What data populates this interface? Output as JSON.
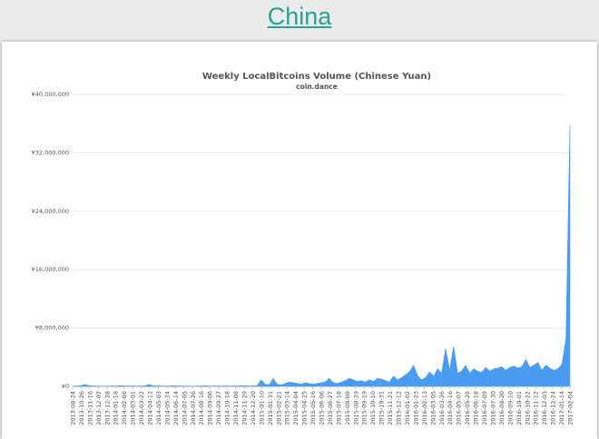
{
  "page": {
    "country": "China"
  },
  "chart_data": {
    "type": "area",
    "title": "Weekly LocalBitcoins Volume (Chinese Yuan)",
    "subtitle": "coin.dance",
    "xlabel": "",
    "ylabel": "",
    "ylim": [
      0,
      40000000
    ],
    "yticks": [
      0,
      8000000,
      16000000,
      24000000,
      32000000,
      40000000
    ],
    "ytick_labels": [
      "¥0",
      "¥8,000,000",
      "¥16,000,000",
      "¥24,000,000",
      "¥32,000,000",
      "¥40,000,000"
    ],
    "grid": true,
    "legend": "none",
    "color": "#4a9cf0",
    "x_tick_labels": [
      "2013-08-24",
      "2013-10-26",
      "2013-11-16",
      "2013-12-07",
      "2013-12-28",
      "2014-01-18",
      "2014-02-08",
      "2014-03-01",
      "2014-03-22",
      "2014-04-12",
      "2014-05-03",
      "2014-05-24",
      "2014-06-14",
      "2014-07-05",
      "2014-07-26",
      "2014-08-16",
      "2014-09-06",
      "2014-09-27",
      "2014-10-18",
      "2014-11-08",
      "2014-11-29",
      "2014-12-20",
      "2015-01-10",
      "2015-01-31",
      "2015-02-21",
      "2015-03-14",
      "2015-04-04",
      "2015-04-25",
      "2015-05-16",
      "2015-06-06",
      "2015-06-27",
      "2015-07-18",
      "2015-08-08",
      "2015-08-29",
      "2015-09-19",
      "2015-10-10",
      "2015-10-31",
      "2015-11-21",
      "2015-12-12",
      "2016-01-02",
      "2016-01-23",
      "2016-02-13",
      "2016-03-05",
      "2016-03-26",
      "2016-04-16",
      "2016-05-07",
      "2016-05-28",
      "2016-06-18",
      "2016-07-09",
      "2016-07-30",
      "2016-08-20",
      "2016-09-10",
      "2016-10-01",
      "2016-10-22",
      "2016-11-12",
      "2016-12-03",
      "2016-12-24",
      "2017-01-14",
      "2017-02-04"
    ],
    "series": [
      {
        "values": [
          40000,
          60000,
          80000,
          250000,
          120000,
          60000,
          50000,
          40000,
          30000,
          40000,
          50000,
          60000,
          80000,
          70000,
          60000,
          50000,
          40000,
          60000,
          80000,
          250000,
          100000,
          60000,
          50000,
          40000,
          60000,
          80000,
          70000,
          60000,
          50000,
          40000,
          30000,
          50000,
          60000,
          80000,
          60000,
          40000,
          50000,
          60000,
          50000,
          40000,
          50000,
          60000,
          80000,
          100000,
          60000,
          50000,
          100000,
          900000,
          300000,
          200000,
          1100000,
          300000,
          200000,
          400000,
          600000,
          500000,
          400000,
          300000,
          500000,
          400000,
          300000,
          400000,
          500000,
          600000,
          1100000,
          500000,
          400000,
          600000,
          800000,
          1100000,
          900000,
          700000,
          800000,
          600000,
          900000,
          700000,
          1100000,
          1000000,
          800000,
          600000,
          1400000,
          900000,
          1200000,
          1600000,
          2000000,
          2900000,
          1500000,
          900000,
          1200000,
          2000000,
          1400000,
          2400000,
          1800000,
          5200000,
          2200000,
          5500000,
          1800000,
          2100000,
          2900000,
          1800000,
          2400000,
          2100000,
          1900000,
          2600000,
          2100000,
          2400000,
          2500000,
          2700000,
          2200000,
          2600000,
          2800000,
          2500000,
          2700000,
          3700000,
          2600000,
          2900000,
          3300000,
          2200000,
          2900000,
          2500000,
          2200000,
          2400000,
          3000000,
          6500000,
          35800000
        ]
      }
    ]
  }
}
